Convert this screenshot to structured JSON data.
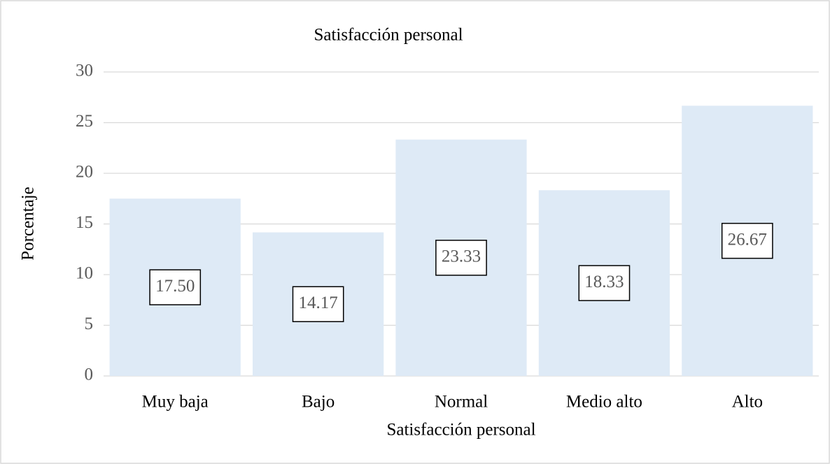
{
  "chart_data": {
    "type": "bar",
    "title": "Satisfacción personal",
    "x_label": "Satisfacción personal",
    "y_label": "Porcentaje",
    "categories": [
      "Muy baja",
      "Bajo",
      "Normal",
      "Medio alto",
      "Alto"
    ],
    "values": [
      17.5,
      14.17,
      23.33,
      18.33,
      26.67
    ],
    "value_labels": [
      "17.50",
      "14.17",
      "23.33",
      "18.33",
      "26.67"
    ],
    "color": "#deeaf6",
    "ylim": [
      0,
      30
    ],
    "yticks": [
      0,
      5,
      10,
      15,
      20,
      25,
      30
    ],
    "grid": true
  }
}
